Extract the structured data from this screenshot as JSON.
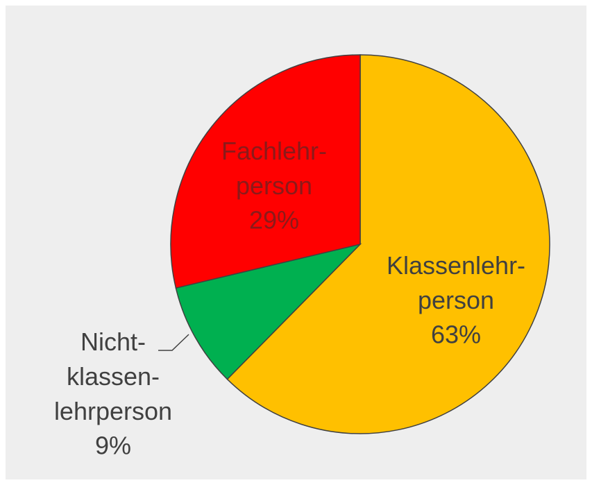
{
  "chart_data": {
    "type": "pie",
    "categories": [
      "Klassenlehr-\nperson",
      "Nicht-\nklassen-\nlehrperson",
      "Fachlehr-\nperson"
    ],
    "values": [
      63,
      9,
      29
    ],
    "value_labels": [
      "63%",
      "9%",
      "29%"
    ],
    "colors": [
      "#ffc000",
      "#00b050",
      "#ff0000"
    ]
  }
}
